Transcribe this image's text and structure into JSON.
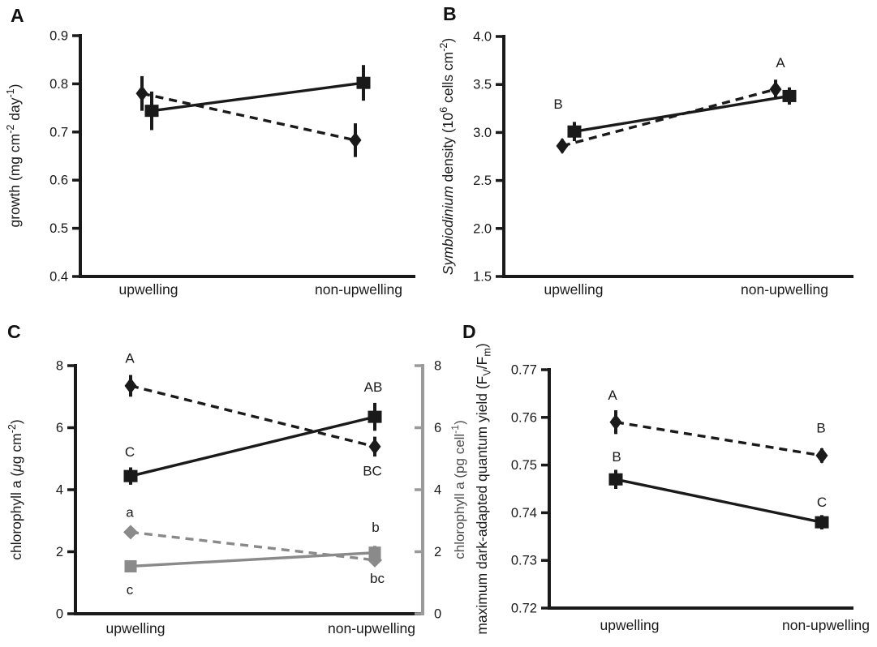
{
  "figure": {
    "background": "#ffffff",
    "text_color": "#1a1a1a",
    "gray_color": "#8a8a8a"
  },
  "chart_data": [
    {
      "panel_letter": "A",
      "type": "line",
      "categories": [
        "upwelling",
        "non-upwelling"
      ],
      "ylabel": "growth (mg cm^-2^ day^-1^)",
      "ylim": [
        0.4,
        0.9
      ],
      "grid": false,
      "legend": "none",
      "yticks": [
        {
          "v": 0.9,
          "t": "0.9"
        },
        {
          "v": 0.8,
          "t": "0.8"
        },
        {
          "v": 0.7,
          "t": "0.7"
        },
        {
          "v": 0.6,
          "t": "0.6"
        },
        {
          "v": 0.5,
          "t": "0.5"
        },
        {
          "v": 0.4,
          "t": "0.4"
        }
      ],
      "series": [
        {
          "name": "diamond-dashed",
          "marker": "diamond",
          "line": "dashed",
          "color": "#1a1a1a",
          "values": [
            0.78,
            0.683
          ],
          "errors": [
            0.036,
            0.035
          ]
        },
        {
          "name": "square-solid",
          "marker": "square",
          "line": "solid",
          "color": "#1a1a1a",
          "values": [
            0.744,
            0.802
          ],
          "errors": [
            0.04,
            0.037
          ]
        }
      ],
      "annotations": []
    },
    {
      "panel_letter": "B",
      "type": "line",
      "categories": [
        "upwelling",
        "non-upwelling"
      ],
      "ylabel": "*Symbiodinium* density (10^6^ cells cm^-2^)",
      "ylim": [
        1.5,
        4.0
      ],
      "grid": false,
      "legend": "none",
      "yticks": [
        {
          "v": 4.0,
          "t": "4.0"
        },
        {
          "v": 3.5,
          "t": "3.5"
        },
        {
          "v": 3.0,
          "t": "3.0"
        },
        {
          "v": 2.5,
          "t": "2.5"
        },
        {
          "v": 2.0,
          "t": "2.0"
        },
        {
          "v": 1.5,
          "t": "1.5"
        }
      ],
      "series": [
        {
          "name": "diamond-dashed",
          "marker": "diamond",
          "line": "dashed",
          "color": "#1a1a1a",
          "values": [
            2.86,
            3.45
          ],
          "errors": [
            0.07,
            0.1
          ]
        },
        {
          "name": "square-solid",
          "marker": "square",
          "line": "solid",
          "color": "#1a1a1a",
          "values": [
            3.01,
            3.38
          ],
          "errors": [
            0.1,
            0.09
          ]
        }
      ],
      "annotations": [
        {
          "t": "B",
          "cat": 0,
          "dx": -19,
          "y": 3.3
        },
        {
          "t": "A",
          "cat": 1,
          "dx": -5,
          "y": 3.73
        }
      ]
    },
    {
      "panel_letter": "C",
      "type": "line",
      "categories": [
        "upwelling",
        "non-upwelling"
      ],
      "ylabel": "chlorophyll a (*μ*g cm^-2^)",
      "right_axis": {
        "label": "chlorophyll a (pg cell^-1^)",
        "axis_color": "#9a9a9a",
        "label_color": "#4d4d4d",
        "yticks": [
          {
            "v": 8,
            "t": "8"
          },
          {
            "v": 6,
            "t": "6"
          },
          {
            "v": 4,
            "t": "4"
          },
          {
            "v": 2,
            "t": "2"
          },
          {
            "v": 0,
            "t": "0"
          }
        ]
      },
      "ylim": [
        0,
        8
      ],
      "grid": false,
      "legend": "none",
      "yticks": [
        {
          "v": 8,
          "t": "8"
        },
        {
          "v": 6,
          "t": "6"
        },
        {
          "v": 4,
          "t": "4"
        },
        {
          "v": 2,
          "t": "2"
        },
        {
          "v": 0,
          "t": "0"
        }
      ],
      "series": [
        {
          "name": "areal-diamond-dashed",
          "marker": "diamond",
          "line": "dashed",
          "color": "#1a1a1a",
          "values": [
            7.35,
            5.39
          ],
          "errors": [
            0.35,
            0.32
          ]
        },
        {
          "name": "areal-square-solid",
          "marker": "square",
          "line": "solid",
          "color": "#1a1a1a",
          "values": [
            4.44,
            6.35
          ],
          "errors": [
            0.28,
            0.45
          ]
        },
        {
          "name": "per-cell-diamond-dashed",
          "marker": "diamond",
          "line": "dashed",
          "color": "#8a8a8a",
          "values": [
            2.63,
            1.73
          ],
          "errors": [
            0.12,
            0.1
          ]
        },
        {
          "name": "per-cell-square-solid",
          "marker": "square",
          "line": "solid",
          "color": "#8a8a8a",
          "values": [
            1.53,
            1.97
          ],
          "errors": [
            0.1,
            0.22
          ]
        }
      ],
      "annotations": [
        {
          "t": "A",
          "cat": 0,
          "dx": -7,
          "y": 8.25
        },
        {
          "t": "C",
          "cat": 0,
          "dx": -7,
          "y": 5.23
        },
        {
          "t": "a",
          "cat": 0,
          "dx": -7,
          "y": 3.28
        },
        {
          "t": "c",
          "cat": 0,
          "dx": -7,
          "y": 0.78
        },
        {
          "t": "AB",
          "cat": 1,
          "dx": 2,
          "y": 7.32
        },
        {
          "t": "BC",
          "cat": 1,
          "dx": 1,
          "y": 4.62
        },
        {
          "t": "b",
          "cat": 1,
          "dx": 5,
          "y": 2.8
        },
        {
          "t": "bc",
          "cat": 1,
          "dx": 7,
          "y": 1.15
        }
      ]
    },
    {
      "panel_letter": "D",
      "type": "line",
      "categories": [
        "upwelling",
        "non-upwelling"
      ],
      "ylabel": "maximum dark-adapted quantum yield (F~V~/F~m~)",
      "ylim": [
        0.72,
        0.77
      ],
      "grid": false,
      "legend": "none",
      "yticks": [
        {
          "v": 0.77,
          "t": "0.77"
        },
        {
          "v": 0.76,
          "t": "0.76"
        },
        {
          "v": 0.75,
          "t": "0.75"
        },
        {
          "v": 0.74,
          "t": "0.74"
        },
        {
          "v": 0.73,
          "t": "0.73"
        },
        {
          "v": 0.72,
          "t": "0.72"
        }
      ],
      "series": [
        {
          "name": "diamond-dashed",
          "marker": "diamond",
          "line": "dashed",
          "color": "#1a1a1a",
          "values": [
            0.759,
            0.752
          ],
          "errors": [
            0.0025,
            0.0015
          ]
        },
        {
          "name": "square-solid",
          "marker": "square",
          "line": "solid",
          "color": "#1a1a1a",
          "values": [
            0.747,
            0.738
          ],
          "errors": [
            0.002,
            0.0015
          ]
        }
      ],
      "annotations": [
        {
          "t": "A",
          "cat": 0,
          "dx": -21,
          "y": 0.7647
        },
        {
          "t": "B",
          "cat": 0,
          "dx": -16,
          "y": 0.7518
        },
        {
          "t": "B",
          "cat": 1,
          "dx": -6,
          "y": 0.7578
        },
        {
          "t": "C",
          "cat": 1,
          "dx": -5,
          "y": 0.7423
        }
      ]
    }
  ]
}
